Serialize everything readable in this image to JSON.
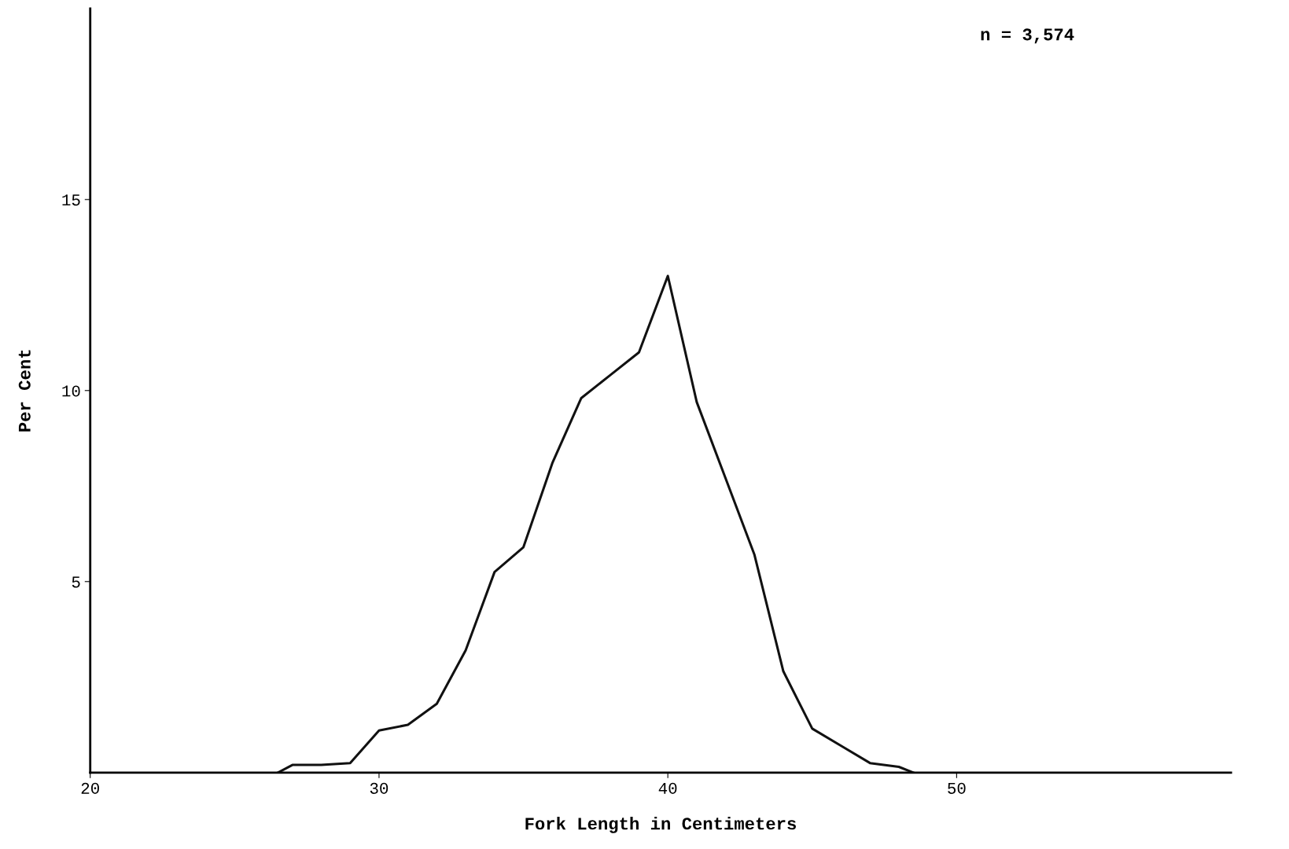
{
  "chart_data": {
    "type": "line",
    "xlabel": "Fork Length in Centimeters",
    "ylabel": "Per Cent",
    "annotations": [
      "n = 3,574"
    ],
    "x": [
      26.5,
      27,
      28,
      29,
      30,
      31,
      32,
      33,
      34,
      35,
      36,
      37,
      38,
      39,
      40,
      41,
      42,
      43,
      44,
      45,
      46,
      47,
      48,
      48.5
    ],
    "series": [
      {
        "color": "#111111",
        "values": [
          0,
          0.2,
          0.2,
          0.25,
          1.1,
          1.25,
          1.8,
          3.2,
          5.25,
          5.9,
          8.1,
          9.8,
          10.4,
          11.0,
          13.0,
          9.7,
          7.7,
          5.7,
          2.65,
          1.15,
          0.7,
          0.25,
          0.15,
          0
        ]
      }
    ],
    "xlim": [
      20,
      59.5
    ],
    "ylim": [
      0,
      20
    ],
    "xticks": [
      20,
      30,
      40,
      50
    ],
    "yticks": [
      5,
      10,
      15
    ],
    "grid": false,
    "legend": false,
    "marker": "none",
    "line_style": "solid"
  }
}
